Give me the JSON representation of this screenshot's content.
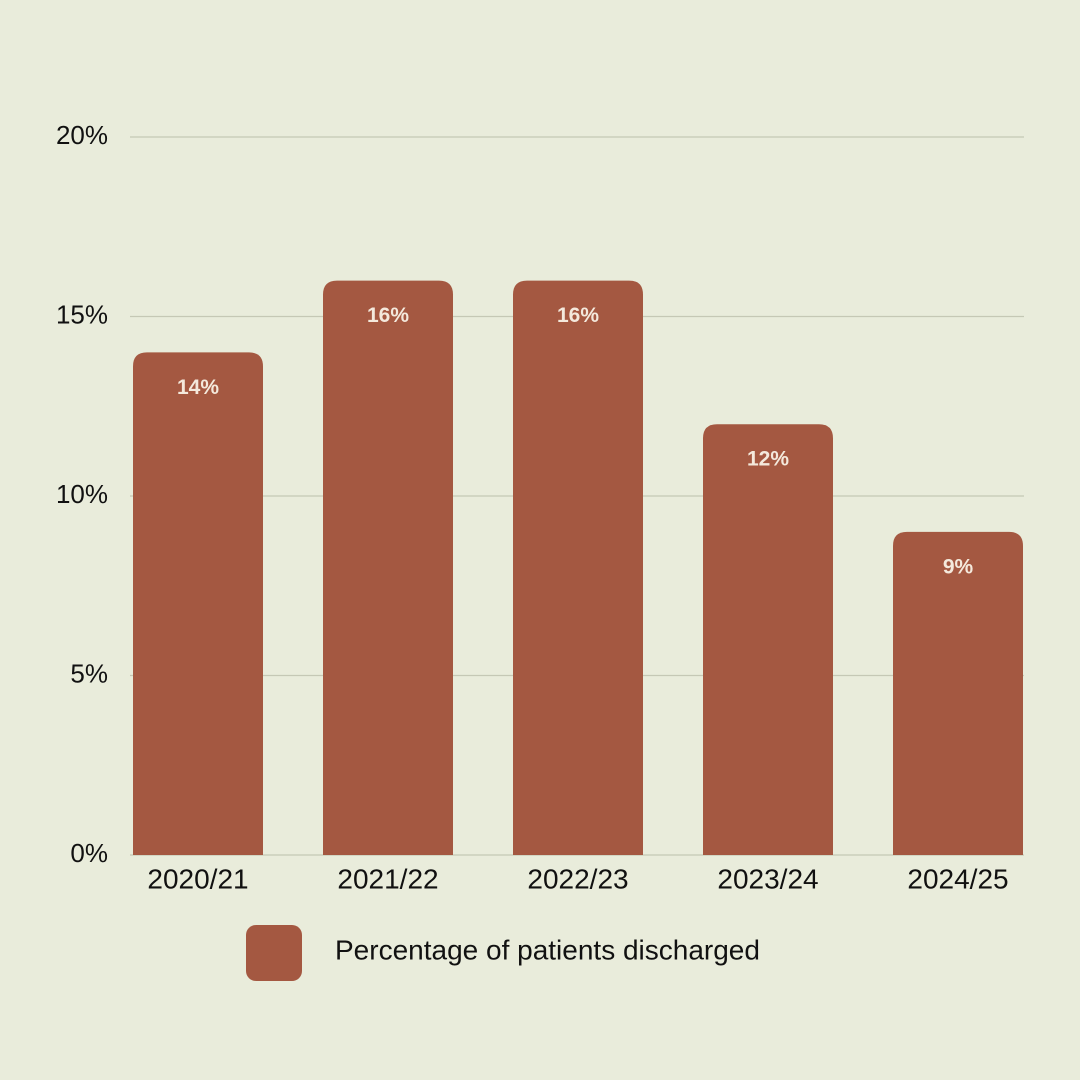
{
  "chart_data": {
    "type": "bar",
    "categories": [
      "2020/21",
      "2021/22",
      "2022/23",
      "2023/24",
      "2024/25"
    ],
    "series": [
      {
        "name": "Percentage of patients discharged",
        "color": "#a45841",
        "values": [
          14,
          16,
          16,
          12,
          9
        ],
        "value_labels": [
          "14%",
          "16%",
          "16%",
          "12%",
          "9%"
        ]
      }
    ],
    "ylim": [
      0,
      20
    ],
    "yticks": [
      {
        "value": 0,
        "label": "0%"
      },
      {
        "value": 5,
        "label": "5%"
      },
      {
        "value": 10,
        "label": "10%"
      },
      {
        "value": 15,
        "label": "15%"
      },
      {
        "value": 20,
        "label": "20%"
      }
    ],
    "grid": true,
    "legend": "bottom"
  }
}
